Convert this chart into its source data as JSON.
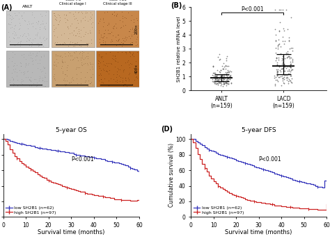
{
  "panel_B": {
    "ylabel": "SH2B1 relative mRNA level",
    "groups": [
      "ANLT\n(n=159)",
      "LACD\n(n=159)"
    ],
    "anlt_mean": 1.0,
    "anlt_std": 0.5,
    "lacd_mean": 2.1,
    "lacd_std": 1.1,
    "pvalue": "P<0.001",
    "ylim": [
      0,
      6
    ],
    "yticks": [
      0,
      1,
      2,
      3,
      4,
      5,
      6
    ]
  },
  "panel_C": {
    "title": "5-year OS",
    "xlabel": "Survival time (months)",
    "ylabel": "Cumulative survival (%)",
    "pvalue": "P<0.001",
    "xticks": [
      0,
      10,
      20,
      30,
      40,
      50,
      60
    ],
    "yticks": [
      0,
      20,
      40,
      60,
      80,
      100
    ],
    "low_label": "low SH2B1 (n=62)",
    "high_label": "high SH2B1 (n=97)",
    "low_color": "#3333bb",
    "high_color": "#cc2222",
    "low_t": [
      0,
      1,
      2,
      3,
      4,
      5,
      6,
      7,
      8,
      9,
      10,
      11,
      12,
      13,
      14,
      15,
      16,
      17,
      18,
      19,
      20,
      21,
      22,
      23,
      24,
      25,
      26,
      27,
      28,
      29,
      30,
      31,
      32,
      33,
      34,
      35,
      36,
      37,
      38,
      39,
      40,
      41,
      42,
      43,
      44,
      45,
      46,
      47,
      48,
      49,
      50,
      51,
      52,
      53,
      54,
      55,
      56,
      57,
      58,
      59,
      60
    ],
    "low_s": [
      100,
      100,
      99,
      98,
      97,
      96,
      95,
      94,
      94,
      93,
      92,
      92,
      91,
      91,
      90,
      89,
      89,
      88,
      88,
      87,
      87,
      86,
      86,
      85,
      85,
      84,
      84,
      83,
      83,
      82,
      82,
      81,
      80,
      80,
      79,
      79,
      78,
      78,
      77,
      77,
      76,
      75,
      75,
      74,
      74,
      73,
      72,
      72,
      71,
      70,
      70,
      69,
      68,
      67,
      66,
      65,
      63,
      62,
      61,
      59,
      57
    ],
    "high_t": [
      0,
      1,
      2,
      3,
      4,
      5,
      6,
      7,
      8,
      9,
      10,
      11,
      12,
      13,
      14,
      15,
      16,
      17,
      18,
      19,
      20,
      21,
      22,
      23,
      24,
      25,
      26,
      27,
      28,
      29,
      30,
      31,
      32,
      33,
      34,
      35,
      36,
      37,
      38,
      39,
      40,
      41,
      42,
      43,
      44,
      45,
      46,
      47,
      48,
      49,
      50,
      51,
      52,
      53,
      54,
      55,
      56,
      57,
      58,
      59,
      60
    ],
    "high_s": [
      100,
      98,
      93,
      87,
      82,
      78,
      75,
      72,
      69,
      67,
      65,
      63,
      61,
      59,
      57,
      55,
      53,
      51,
      50,
      48,
      47,
      45,
      44,
      43,
      42,
      41,
      40,
      39,
      38,
      37,
      36,
      35,
      34,
      33,
      32,
      32,
      31,
      30,
      30,
      29,
      28,
      28,
      27,
      27,
      26,
      25,
      25,
      24,
      24,
      23,
      23,
      23,
      22,
      22,
      22,
      22,
      21,
      21,
      21,
      22,
      22
    ]
  },
  "panel_D": {
    "title": "5-year DFS",
    "xlabel": "Survival time (months)",
    "ylabel": "Cumulative survival (%)",
    "pvalue": "P<0.001",
    "xticks": [
      0,
      10,
      20,
      30,
      40,
      50,
      60
    ],
    "yticks": [
      0,
      20,
      40,
      60,
      80,
      100
    ],
    "low_label": "low SH2B1 (n=62)",
    "high_label": "high SH2B1 (n=97)",
    "low_color": "#3333bb",
    "high_color": "#cc2222",
    "low_t": [
      0,
      1,
      2,
      3,
      4,
      5,
      6,
      7,
      8,
      9,
      10,
      11,
      12,
      13,
      14,
      15,
      16,
      17,
      18,
      19,
      20,
      21,
      22,
      23,
      24,
      25,
      26,
      27,
      28,
      29,
      30,
      31,
      32,
      33,
      34,
      35,
      36,
      37,
      38,
      39,
      40,
      41,
      42,
      43,
      44,
      45,
      46,
      47,
      48,
      49,
      50,
      51,
      52,
      53,
      54,
      55,
      56,
      57,
      58,
      59,
      60
    ],
    "low_s": [
      100,
      100,
      98,
      96,
      94,
      92,
      90,
      88,
      86,
      85,
      84,
      82,
      81,
      80,
      79,
      78,
      77,
      76,
      75,
      74,
      73,
      72,
      71,
      70,
      69,
      68,
      67,
      66,
      65,
      64,
      63,
      62,
      61,
      60,
      59,
      58,
      57,
      56,
      55,
      54,
      53,
      52,
      51,
      50,
      49,
      48,
      47,
      46,
      46,
      45,
      44,
      43,
      43,
      42,
      41,
      40,
      39,
      39,
      38,
      47,
      46
    ],
    "high_t": [
      0,
      1,
      2,
      3,
      4,
      5,
      6,
      7,
      8,
      9,
      10,
      11,
      12,
      13,
      14,
      15,
      16,
      17,
      18,
      19,
      20,
      21,
      22,
      23,
      24,
      25,
      26,
      27,
      28,
      29,
      30,
      31,
      32,
      33,
      34,
      35,
      36,
      37,
      38,
      39,
      40,
      41,
      42,
      43,
      44,
      45,
      46,
      47,
      48,
      49,
      50,
      51,
      52,
      53,
      54,
      55,
      56,
      57,
      58,
      59,
      60
    ],
    "high_s": [
      100,
      96,
      89,
      81,
      74,
      68,
      63,
      58,
      53,
      49,
      46,
      43,
      40,
      38,
      36,
      34,
      32,
      31,
      29,
      28,
      27,
      26,
      25,
      24,
      23,
      22,
      21,
      21,
      20,
      19,
      19,
      18,
      18,
      17,
      17,
      16,
      16,
      15,
      15,
      15,
      14,
      14,
      13,
      13,
      13,
      12,
      12,
      12,
      11,
      11,
      11,
      11,
      10,
      10,
      10,
      10,
      9,
      9,
      9,
      9,
      16
    ]
  },
  "bg_color": "#ffffff"
}
